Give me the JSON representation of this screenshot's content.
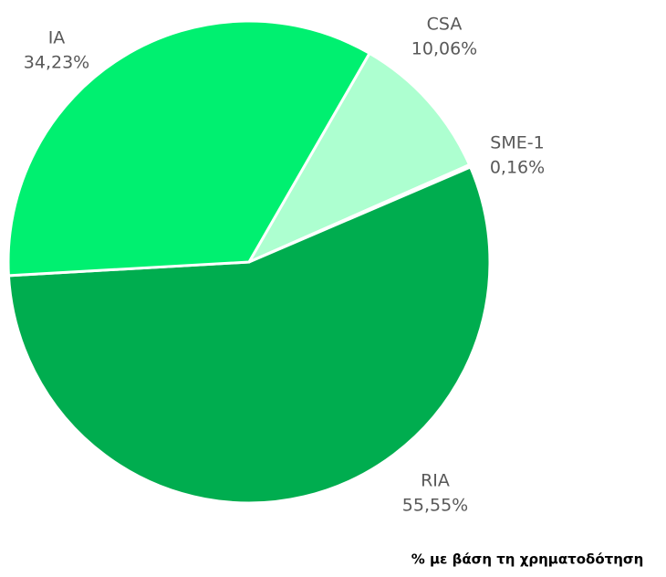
{
  "chart_data": {
    "type": "pie",
    "categories": [
      "CSA",
      "SME-1",
      "RIA",
      "IA"
    ],
    "values": [
      10.06,
      0.16,
      55.55,
      34.23
    ],
    "value_labels": [
      "10,06%",
      "0,16%",
      "55,55%",
      "34,23%"
    ],
    "colors": [
      "#adffd0",
      "#5fe79a",
      "#00ad4f",
      "#00f070"
    ],
    "note": "% με βάση τη χρηματοδότηση"
  }
}
